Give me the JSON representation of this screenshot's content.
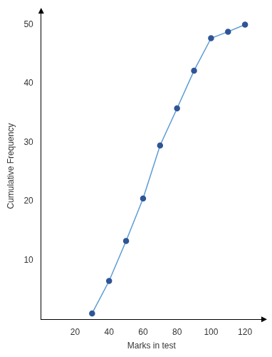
{
  "chart_data": {
    "type": "line",
    "x_label": "Marks in test",
    "y_label": "Cumulative Frequency",
    "x": [
      30,
      40,
      50,
      60,
      70,
      80,
      90,
      100,
      110,
      120
    ],
    "values": [
      1,
      6.5,
      13.3,
      20.5,
      29.5,
      35.8,
      42.2,
      47.7,
      48.8,
      50
    ],
    "color": "#5b9bd5",
    "marker": "circle",
    "xlim": [
      0,
      130
    ],
    "xticks": [
      20,
      40,
      60,
      80,
      100,
      120
    ],
    "ylim": [
      0,
      52
    ],
    "yticks": [
      10,
      20,
      30,
      40,
      50
    ],
    "grid": false
  }
}
